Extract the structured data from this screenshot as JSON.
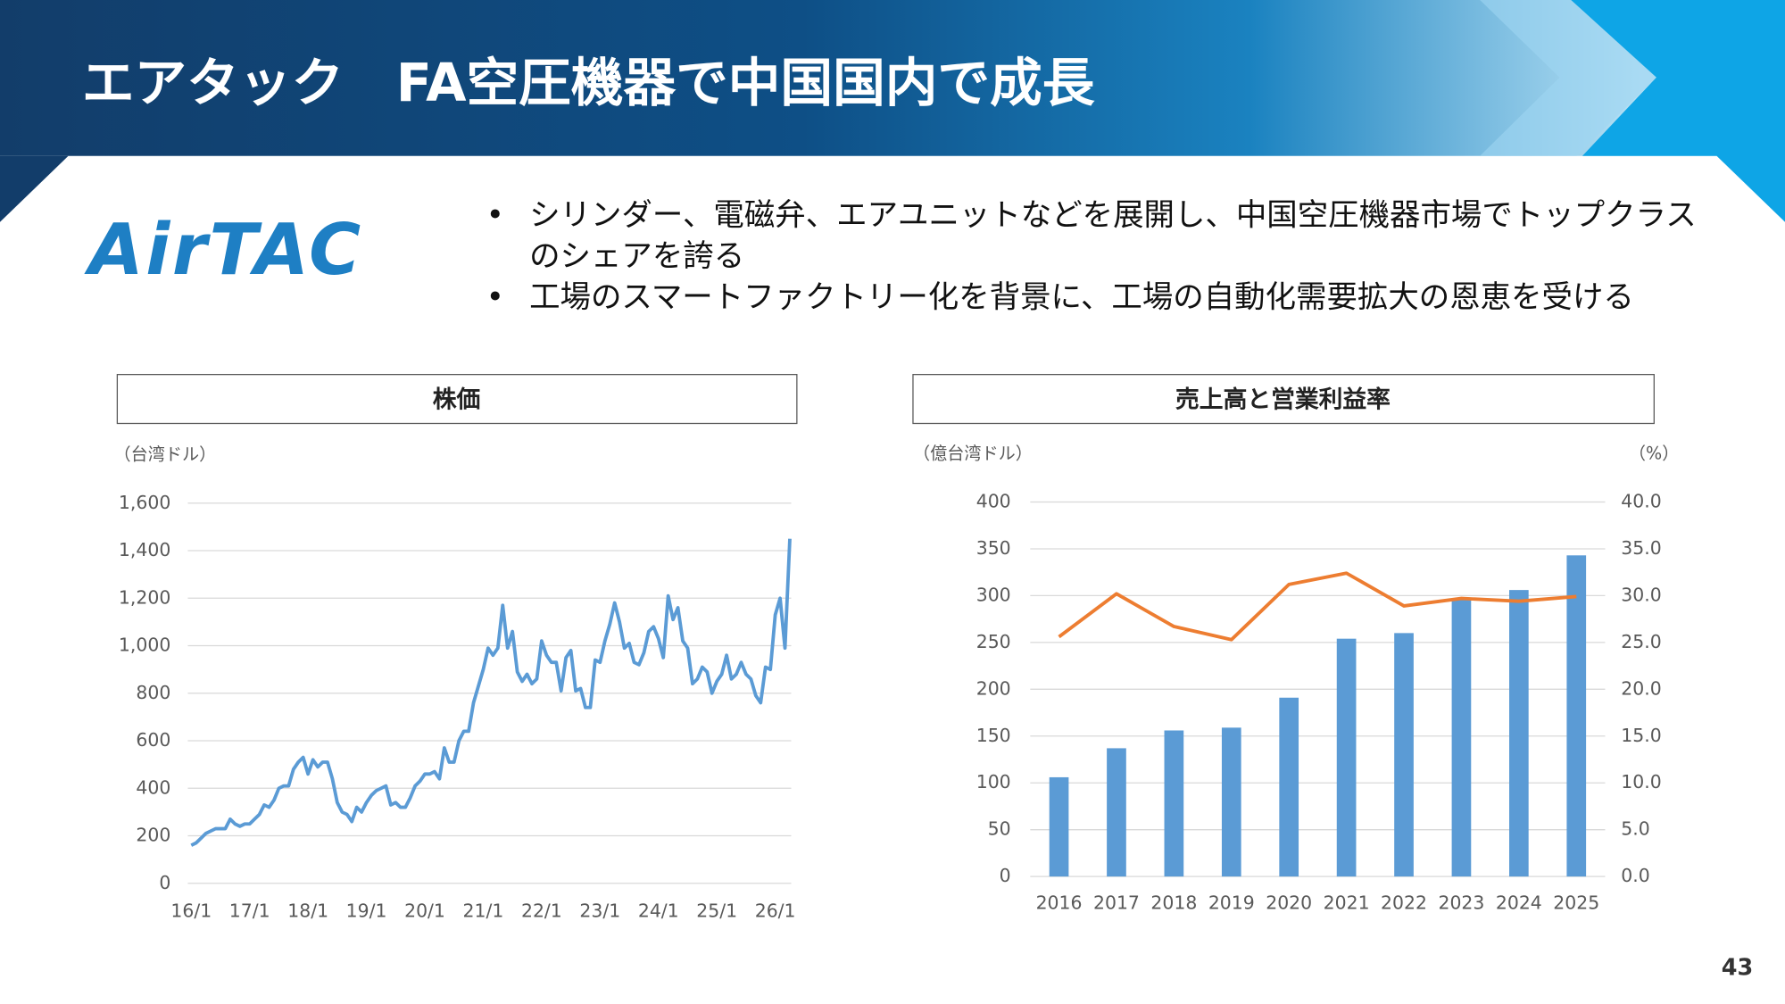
{
  "header": {
    "title": "エアタック　FA空圧機器で中国国内で成長"
  },
  "logo": "AirTAC",
  "bullets": [
    "シリンダー、電磁弁、エアユニットなどを展開し、中国空圧機器市場でトップクラスのシェアを誇る",
    "工場のスマートファクトリー化を背景に、工場の自動化需要拡大の恩恵を受ける"
  ],
  "page_number": "43",
  "chart_data": [
    {
      "type": "line",
      "title": "株価",
      "y_label": "（台湾ドル）",
      "categories": [
        "16/1",
        null,
        null,
        null,
        null,
        null,
        null,
        null,
        null,
        null,
        null,
        null,
        "17/1",
        null,
        null,
        null,
        null,
        null,
        null,
        null,
        null,
        null,
        null,
        null,
        "18/1",
        null,
        null,
        null,
        null,
        null,
        null,
        null,
        null,
        null,
        null,
        null,
        "19/1",
        null,
        null,
        null,
        null,
        null,
        null,
        null,
        null,
        null,
        null,
        null,
        "20/1",
        null,
        null,
        null,
        null,
        null,
        null,
        null,
        null,
        null,
        null,
        null,
        "21/1",
        null,
        null,
        null,
        null,
        null,
        null,
        null,
        null,
        null,
        null,
        null,
        "22/1",
        null,
        null,
        null,
        null,
        null,
        null,
        null,
        null,
        null,
        null,
        null,
        "23/1",
        null,
        null,
        null,
        null,
        null,
        null,
        null,
        null,
        null,
        null,
        null,
        "24/1",
        null,
        null,
        null,
        null,
        null,
        null,
        null,
        null,
        null,
        null,
        null,
        "25/1",
        null,
        null,
        null,
        null,
        null,
        null,
        null,
        null,
        null,
        null,
        null,
        "26/1",
        null,
        null,
        null
      ],
      "series": [
        {
          "name": "株価",
          "color": "#5b9bd5",
          "values": [
            160,
            170,
            190,
            210,
            220,
            230,
            230,
            230,
            270,
            250,
            240,
            250,
            250,
            270,
            290,
            330,
            320,
            350,
            400,
            410,
            410,
            480,
            510,
            530,
            460,
            520,
            490,
            510,
            510,
            440,
            340,
            300,
            290,
            260,
            320,
            300,
            340,
            370,
            390,
            400,
            410,
            330,
            340,
            320,
            320,
            360,
            410,
            430,
            460,
            460,
            470,
            440,
            570,
            510,
            510,
            600,
            640,
            640,
            760,
            830,
            900,
            990,
            960,
            990,
            1170,
            990,
            1060,
            890,
            850,
            880,
            840,
            860,
            1020,
            960,
            930,
            930,
            810,
            950,
            980,
            810,
            820,
            740,
            740,
            940,
            930,
            1020,
            1090,
            1180,
            1100,
            990,
            1010,
            930,
            920,
            970,
            1060,
            1080,
            1030,
            950,
            1210,
            1110,
            1160,
            1020,
            990,
            840,
            860,
            910,
            890,
            800,
            850,
            880,
            960,
            860,
            880,
            930,
            880,
            860,
            790,
            760,
            910,
            900,
            1130,
            1200,
            990,
            1450
          ]
        }
      ],
      "ylim": [
        0,
        1600
      ],
      "yticks": [
        0,
        200,
        400,
        600,
        800,
        {
          "value": 1000,
          "label": "1,000"
        },
        {
          "value": 1200,
          "label": "1,200"
        },
        {
          "value": 1400,
          "label": "1,400"
        },
        {
          "value": 1600,
          "label": "1,600"
        }
      ],
      "grid": true
    },
    {
      "type": "bar_line",
      "title": "売上高と営業利益率",
      "y_label": "（億台湾ドル）",
      "y2_label": "（%）",
      "categories": [
        "2016",
        "2017",
        "2018",
        "2019",
        "2020",
        "2021",
        "2022",
        "2023",
        "2024",
        "2025"
      ],
      "series": [
        {
          "name": "売上高",
          "color": "#5b9bd5",
          "values": [
            106,
            137,
            156,
            159,
            191,
            254,
            260,
            297,
            306,
            343
          ]
        },
        {
          "name": "営業利益率",
          "color": "#ed7d31",
          "axis": "y2",
          "values": [
            25.6,
            30.2,
            26.7,
            25.3,
            31.2,
            32.4,
            28.9,
            29.7,
            29.4,
            29.9
          ]
        }
      ],
      "ylim": [
        0,
        400
      ],
      "yticks": [
        0,
        50,
        100,
        150,
        200,
        250,
        300,
        350,
        400
      ],
      "y2lim": [
        0,
        40
      ],
      "y2ticks": [
        {
          "value": 0,
          "label": "0.0"
        },
        {
          "value": 5,
          "label": "5.0"
        },
        {
          "value": 10,
          "label": "10.0"
        },
        {
          "value": 15,
          "label": "15.0"
        },
        {
          "value": 20,
          "label": "20.0"
        },
        {
          "value": 25,
          "label": "25.0"
        },
        {
          "value": 30,
          "label": "30.0"
        },
        {
          "value": 35,
          "label": "35.0"
        },
        {
          "value": 40,
          "label": "40.0"
        }
      ],
      "grid": true
    }
  ]
}
